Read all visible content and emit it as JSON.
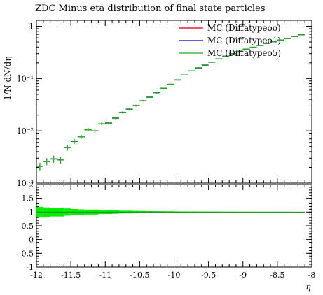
{
  "title": "ZDC Minus eta distribution of final state particles",
  "chart_data": [
    {
      "type": "line",
      "title": "ZDC Minus eta distribution of final state particles",
      "ylabel": "1/N dN/dη",
      "yscale": "log",
      "xlim": [
        -12,
        -8
      ],
      "ylim": [
        0.001,
        1.3
      ],
      "ytick_labels": [
        "1",
        "10⁻¹",
        "10⁻²",
        "10⁻³"
      ],
      "legend_position": "top-right",
      "series": [
        {
          "name": "MC (Diffatypeoo)",
          "color": "#cc0000",
          "x": [
            -11.95,
            -11.85,
            -11.75,
            -11.65,
            -11.55,
            -11.45,
            -11.35,
            -11.25,
            -11.15,
            -11.05,
            -10.95,
            -10.85,
            -10.75,
            -10.65,
            -10.55,
            -10.45,
            -10.35,
            -10.25,
            -10.15,
            -10.05,
            -9.95,
            -9.85,
            -9.75,
            -9.65,
            -9.55,
            -9.45,
            -9.35,
            -9.25,
            -9.15,
            -9.05,
            -8.95,
            -8.85,
            -8.75,
            -8.65,
            -8.55,
            -8.45,
            -8.35,
            -8.25,
            -8.15
          ],
          "y": [
            0.0021,
            0.0026,
            0.0029,
            0.0028,
            0.0048,
            0.0063,
            0.0077,
            0.0105,
            0.01,
            0.0136,
            0.0141,
            0.0175,
            0.0226,
            0.026,
            0.0304,
            0.0376,
            0.044,
            0.0533,
            0.065,
            0.0775,
            0.094,
            0.117,
            0.141,
            0.16,
            0.181,
            0.206,
            0.238,
            0.267,
            0.298,
            0.331,
            0.364,
            0.396,
            0.43,
            0.47,
            0.508,
            0.543,
            0.585,
            0.64,
            0.69
          ]
        },
        {
          "name": "MC (Diffatypeo1)",
          "color": "#0000cc",
          "x": [
            -11.95,
            -11.85,
            -11.75,
            -11.65,
            -11.55,
            -11.45,
            -11.35,
            -11.25,
            -11.15,
            -11.05,
            -10.95,
            -10.85,
            -10.75,
            -10.65,
            -10.55,
            -10.45,
            -10.35,
            -10.25,
            -10.15,
            -10.05,
            -9.95,
            -9.85,
            -9.75,
            -9.65,
            -9.55,
            -9.45,
            -9.35,
            -9.25,
            -9.15,
            -9.05,
            -8.95,
            -8.85,
            -8.75,
            -8.65,
            -8.55,
            -8.45,
            -8.35,
            -8.25,
            -8.15
          ],
          "y": [
            0.0021,
            0.0026,
            0.0029,
            0.0028,
            0.0048,
            0.0063,
            0.0077,
            0.0105,
            0.01,
            0.0136,
            0.0141,
            0.0175,
            0.0226,
            0.026,
            0.0304,
            0.0376,
            0.044,
            0.0533,
            0.065,
            0.0775,
            0.094,
            0.117,
            0.141,
            0.16,
            0.181,
            0.206,
            0.238,
            0.267,
            0.298,
            0.331,
            0.364,
            0.396,
            0.43,
            0.47,
            0.508,
            0.543,
            0.585,
            0.64,
            0.69
          ]
        },
        {
          "name": "MC (Diffatypeo5)",
          "color": "#22aa22",
          "x": [
            -11.95,
            -11.85,
            -11.75,
            -11.65,
            -11.55,
            -11.45,
            -11.35,
            -11.25,
            -11.15,
            -11.05,
            -10.95,
            -10.85,
            -10.75,
            -10.65,
            -10.55,
            -10.45,
            -10.35,
            -10.25,
            -10.15,
            -10.05,
            -9.95,
            -9.85,
            -9.75,
            -9.65,
            -9.55,
            -9.45,
            -9.35,
            -9.25,
            -9.15,
            -9.05,
            -8.95,
            -8.85,
            -8.75,
            -8.65,
            -8.55,
            -8.45,
            -8.35,
            -8.25,
            -8.15
          ],
          "y": [
            0.0021,
            0.0026,
            0.0029,
            0.0028,
            0.0048,
            0.0063,
            0.0077,
            0.0105,
            0.01,
            0.0136,
            0.0141,
            0.0175,
            0.0226,
            0.026,
            0.0304,
            0.0376,
            0.044,
            0.0533,
            0.065,
            0.0775,
            0.094,
            0.117,
            0.141,
            0.16,
            0.181,
            0.206,
            0.238,
            0.267,
            0.298,
            0.331,
            0.364,
            0.396,
            0.43,
            0.47,
            0.508,
            0.543,
            0.585,
            0.64,
            0.69
          ],
          "yerr": [
            0.00035,
            0.0004,
            0.00045,
            0.00045,
            0.0006,
            0.0007,
            0.0007,
            0.0008,
            0.0008,
            0.0009,
            0.0009,
            0.001,
            0.0011,
            0.0012,
            0.0013,
            0.0014,
            0.0015,
            0.0017,
            0.0019,
            0.0021,
            0.0023,
            0.0026,
            0.0028,
            0.003,
            0.0032,
            0.0034,
            0.0037,
            0.0039,
            0.0041,
            0.0043,
            0.0045,
            0.0047,
            0.0049,
            0.0051,
            0.0053,
            0.0055,
            0.0057,
            0.006,
            0.0062
          ]
        }
      ]
    },
    {
      "type": "line",
      "xlabel": "η",
      "xlim": [
        -12,
        -8
      ],
      "ylim": [
        -1,
        2
      ],
      "xticks": [
        -12,
        -11.5,
        -11,
        -10.5,
        -10,
        -9.5,
        -9,
        -8.5,
        -8
      ],
      "yticks": [
        -1,
        -0.5,
        0,
        0.5,
        1,
        1.5,
        2
      ],
      "band_color": "#00ee00",
      "ratio": {
        "x": [
          -11.95,
          -11.85,
          -11.75,
          -11.65,
          -11.55,
          -11.45,
          -11.35,
          -11.25,
          -11.15,
          -11.05,
          -10.95,
          -10.85,
          -10.75,
          -10.65,
          -10.55,
          -10.45,
          -10.35,
          -10.25,
          -10.15,
          -10.05,
          -9.95,
          -9.85,
          -9.75,
          -9.65,
          -9.55,
          -9.45,
          -9.35,
          -9.25,
          -9.15,
          -9.05,
          -8.95,
          -8.85,
          -8.75,
          -8.65,
          -8.55,
          -8.45,
          -8.35,
          -8.25,
          -8.15
        ],
        "y": [
          1,
          1,
          1,
          1,
          1,
          1,
          1,
          1,
          1,
          1,
          1,
          1,
          1,
          1,
          1,
          1,
          1,
          1,
          1,
          1,
          1,
          1,
          1,
          1,
          1,
          1,
          1,
          1,
          1,
          1,
          1,
          1,
          1,
          1,
          1,
          1,
          1,
          1,
          1
        ],
        "band": [
          0.19,
          0.17,
          0.16,
          0.16,
          0.13,
          0.11,
          0.1,
          0.09,
          0.09,
          0.07,
          0.07,
          0.06,
          0.05,
          0.05,
          0.045,
          0.04,
          0.035,
          0.032,
          0.03,
          0.027,
          0.024,
          0.022,
          0.02,
          0.019,
          0.018,
          0.017,
          0.016,
          0.015,
          0.014,
          0.013,
          0.012,
          0.012,
          0.011,
          0.011,
          0.01,
          0.01,
          0.01,
          0.009,
          0.009
        ]
      }
    }
  ]
}
